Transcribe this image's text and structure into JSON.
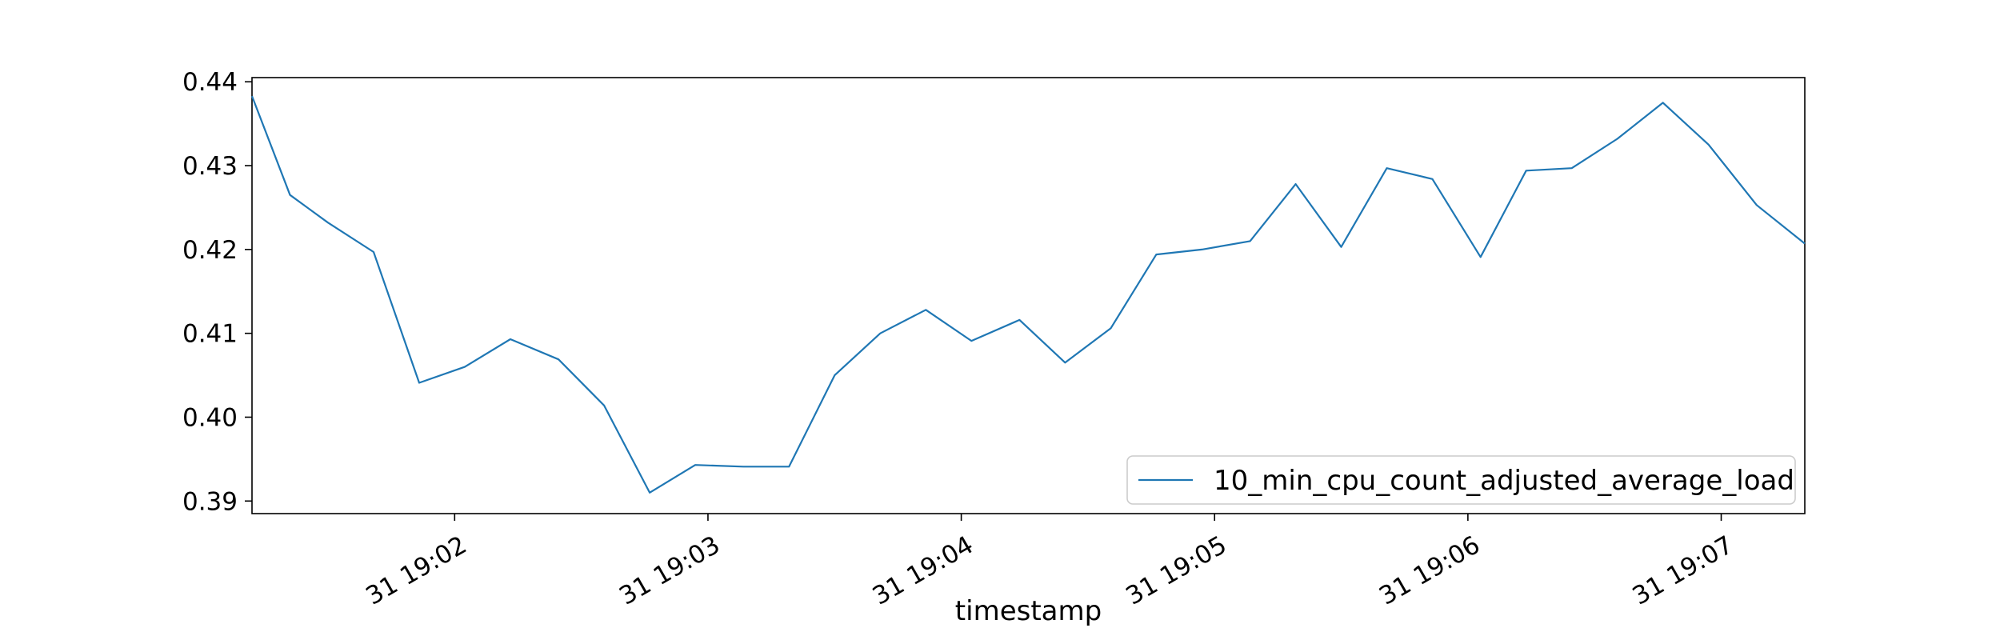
{
  "chart_data": {
    "type": "line",
    "title": "",
    "xlabel": "timestamp",
    "ylabel": "",
    "x_tick_labels": [
      "31 19:02",
      "31 19:03",
      "31 19:04",
      "31 19:05",
      "31 19:06",
      "31 19:07"
    ],
    "x_tick_minutes": [
      2,
      3,
      4,
      5,
      6,
      7
    ],
    "y_ticks": [
      0.39,
      0.4,
      0.41,
      0.42,
      0.43,
      0.44
    ],
    "y_tick_labels": [
      "0.39",
      "0.40",
      "0.41",
      "0.42",
      "0.43",
      "0.44"
    ],
    "ylim": [
      0.3885,
      0.4405
    ],
    "xlim_minutes": [
      1.2,
      7.33
    ],
    "grid": false,
    "legend_position": "lower-right",
    "series": [
      {
        "name": "10_min_cpu_count_adjusted_average_load",
        "color": "#1f77b4",
        "x_minutes": [
          1.2,
          1.35,
          1.5,
          1.68,
          1.86,
          2.04,
          2.22,
          2.41,
          2.59,
          2.77,
          2.95,
          3.14,
          3.32,
          3.5,
          3.68,
          3.86,
          4.04,
          4.23,
          4.41,
          4.59,
          4.77,
          4.95,
          5.14,
          5.32,
          5.5,
          5.68,
          5.86,
          6.05,
          6.23,
          6.41,
          6.59,
          6.77,
          6.95,
          7.14,
          7.33
        ],
        "values": [
          0.4383,
          0.4265,
          0.4232,
          0.4197,
          0.4041,
          0.406,
          0.4093,
          0.4069,
          0.4014,
          0.391,
          0.3943,
          0.3941,
          0.3941,
          0.405,
          0.41,
          0.4128,
          0.4091,
          0.4116,
          0.4065,
          0.4106,
          0.4194,
          0.42,
          0.421,
          0.4278,
          0.4203,
          0.4297,
          0.4284,
          0.4191,
          0.4294,
          0.4297,
          0.4332,
          0.4375,
          0.4325,
          0.4253,
          0.4207
        ]
      }
    ]
  }
}
